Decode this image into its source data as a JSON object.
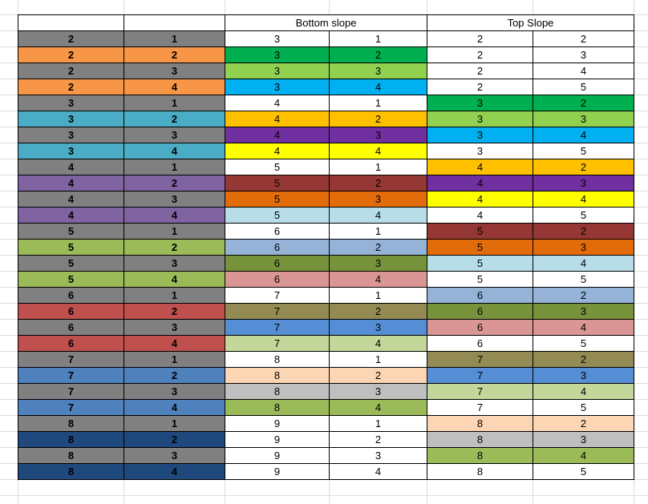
{
  "header": [
    "",
    "",
    "Bottom slope",
    "Top Slope"
  ],
  "rows": [
    {
      "cells": [
        "2",
        "1",
        "3",
        "1",
        "2",
        "2"
      ],
      "colors": [
        "#808080",
        "#808080",
        "#ffffff",
        "#ffffff",
        "#ffffff",
        "#ffffff"
      ]
    },
    {
      "cells": [
        "2",
        "2",
        "3",
        "2",
        "2",
        "3"
      ],
      "colors": [
        "#f79646",
        "#f79646",
        "#00b050",
        "#00b050",
        "#ffffff",
        "#ffffff"
      ]
    },
    {
      "cells": [
        "2",
        "3",
        "3",
        "3",
        "2",
        "4"
      ],
      "colors": [
        "#808080",
        "#808080",
        "#92d050",
        "#92d050",
        "#ffffff",
        "#ffffff"
      ]
    },
    {
      "cells": [
        "2",
        "4",
        "3",
        "4",
        "2",
        "5"
      ],
      "colors": [
        "#f79646",
        "#f79646",
        "#00b0f0",
        "#00b0f0",
        "#ffffff",
        "#ffffff"
      ]
    },
    {
      "cells": [
        "3",
        "1",
        "4",
        "1",
        "3",
        "2"
      ],
      "colors": [
        "#808080",
        "#808080",
        "#ffffff",
        "#ffffff",
        "#00b050",
        "#00b050"
      ]
    },
    {
      "cells": [
        "3",
        "2",
        "4",
        "2",
        "3",
        "3"
      ],
      "colors": [
        "#4bacc6",
        "#4bacc6",
        "#ffc000",
        "#ffc000",
        "#92d050",
        "#92d050"
      ]
    },
    {
      "cells": [
        "3",
        "3",
        "4",
        "3",
        "3",
        "4"
      ],
      "colors": [
        "#808080",
        "#808080",
        "#7030a0",
        "#7030a0",
        "#00b0f0",
        "#00b0f0"
      ]
    },
    {
      "cells": [
        "3",
        "4",
        "4",
        "4",
        "3",
        "5"
      ],
      "colors": [
        "#4bacc6",
        "#4bacc6",
        "#ffff00",
        "#ffff00",
        "#ffffff",
        "#ffffff"
      ]
    },
    {
      "cells": [
        "4",
        "1",
        "5",
        "1",
        "4",
        "2"
      ],
      "colors": [
        "#808080",
        "#808080",
        "#ffffff",
        "#ffffff",
        "#ffc000",
        "#ffc000"
      ]
    },
    {
      "cells": [
        "4",
        "2",
        "5",
        "2",
        "4",
        "3"
      ],
      "colors": [
        "#8064a2",
        "#8064a2",
        "#953735",
        "#953735",
        "#7030a0",
        "#7030a0"
      ]
    },
    {
      "cells": [
        "4",
        "3",
        "5",
        "3",
        "4",
        "4"
      ],
      "colors": [
        "#808080",
        "#808080",
        "#e26b0a",
        "#e26b0a",
        "#ffff00",
        "#ffff00"
      ]
    },
    {
      "cells": [
        "4",
        "4",
        "5",
        "4",
        "4",
        "5"
      ],
      "colors": [
        "#8064a2",
        "#8064a2",
        "#b7dee8",
        "#b7dee8",
        "#ffffff",
        "#ffffff"
      ]
    },
    {
      "cells": [
        "5",
        "1",
        "6",
        "1",
        "5",
        "2"
      ],
      "colors": [
        "#808080",
        "#808080",
        "#ffffff",
        "#ffffff",
        "#953735",
        "#953735"
      ]
    },
    {
      "cells": [
        "5",
        "2",
        "6",
        "2",
        "5",
        "3"
      ],
      "colors": [
        "#9bbb59",
        "#9bbb59",
        "#95b3d7",
        "#95b3d7",
        "#e26b0a",
        "#e26b0a"
      ]
    },
    {
      "cells": [
        "5",
        "3",
        "6",
        "3",
        "5",
        "4"
      ],
      "colors": [
        "#808080",
        "#808080",
        "#76933c",
        "#76933c",
        "#b7dee8",
        "#b7dee8"
      ]
    },
    {
      "cells": [
        "5",
        "4",
        "6",
        "4",
        "5",
        "5"
      ],
      "colors": [
        "#9bbb59",
        "#9bbb59",
        "#da9694",
        "#da9694",
        "#ffffff",
        "#ffffff"
      ]
    },
    {
      "cells": [
        "6",
        "1",
        "7",
        "1",
        "6",
        "2"
      ],
      "colors": [
        "#808080",
        "#808080",
        "#ffffff",
        "#ffffff",
        "#95b3d7",
        "#95b3d7"
      ]
    },
    {
      "cells": [
        "6",
        "2",
        "7",
        "2",
        "6",
        "3"
      ],
      "colors": [
        "#c0504d",
        "#c0504d",
        "#948a54",
        "#948a54",
        "#76933c",
        "#76933c"
      ]
    },
    {
      "cells": [
        "6",
        "3",
        "7",
        "3",
        "6",
        "4"
      ],
      "colors": [
        "#808080",
        "#808080",
        "#558ed5",
        "#558ed5",
        "#da9694",
        "#da9694"
      ]
    },
    {
      "cells": [
        "6",
        "4",
        "7",
        "4",
        "6",
        "5"
      ],
      "colors": [
        "#c0504d",
        "#c0504d",
        "#c4d79b",
        "#c4d79b",
        "#ffffff",
        "#ffffff"
      ]
    },
    {
      "cells": [
        "7",
        "1",
        "8",
        "1",
        "7",
        "2"
      ],
      "colors": [
        "#808080",
        "#808080",
        "#ffffff",
        "#ffffff",
        "#948a54",
        "#948a54"
      ]
    },
    {
      "cells": [
        "7",
        "2",
        "8",
        "2",
        "7",
        "3"
      ],
      "colors": [
        "#4f81bd",
        "#4f81bd",
        "#fcd5b4",
        "#fcd5b4",
        "#558ed5",
        "#558ed5"
      ]
    },
    {
      "cells": [
        "7",
        "3",
        "8",
        "3",
        "7",
        "4"
      ],
      "colors": [
        "#808080",
        "#808080",
        "#bfbfbf",
        "#bfbfbf",
        "#c4d79b",
        "#c4d79b"
      ]
    },
    {
      "cells": [
        "7",
        "4",
        "8",
        "4",
        "7",
        "5"
      ],
      "colors": [
        "#4f81bd",
        "#4f81bd",
        "#9bbb59",
        "#9bbb59",
        "#ffffff",
        "#ffffff"
      ]
    },
    {
      "cells": [
        "8",
        "1",
        "9",
        "1",
        "8",
        "2"
      ],
      "colors": [
        "#808080",
        "#808080",
        "#ffffff",
        "#ffffff",
        "#fcd5b4",
        "#fcd5b4"
      ]
    },
    {
      "cells": [
        "8",
        "2",
        "9",
        "2",
        "8",
        "3"
      ],
      "colors": [
        "#1f497d",
        "#1f497d",
        "#ffffff",
        "#ffffff",
        "#bfbfbf",
        "#bfbfbf"
      ]
    },
    {
      "cells": [
        "8",
        "3",
        "9",
        "3",
        "8",
        "4"
      ],
      "colors": [
        "#808080",
        "#808080",
        "#ffffff",
        "#ffffff",
        "#9bbb59",
        "#9bbb59"
      ]
    },
    {
      "cells": [
        "8",
        "4",
        "9",
        "4",
        "8",
        "5"
      ],
      "colors": [
        "#1f497d",
        "#1f497d",
        "#ffffff",
        "#ffffff",
        "#ffffff",
        "#ffffff"
      ]
    }
  ]
}
